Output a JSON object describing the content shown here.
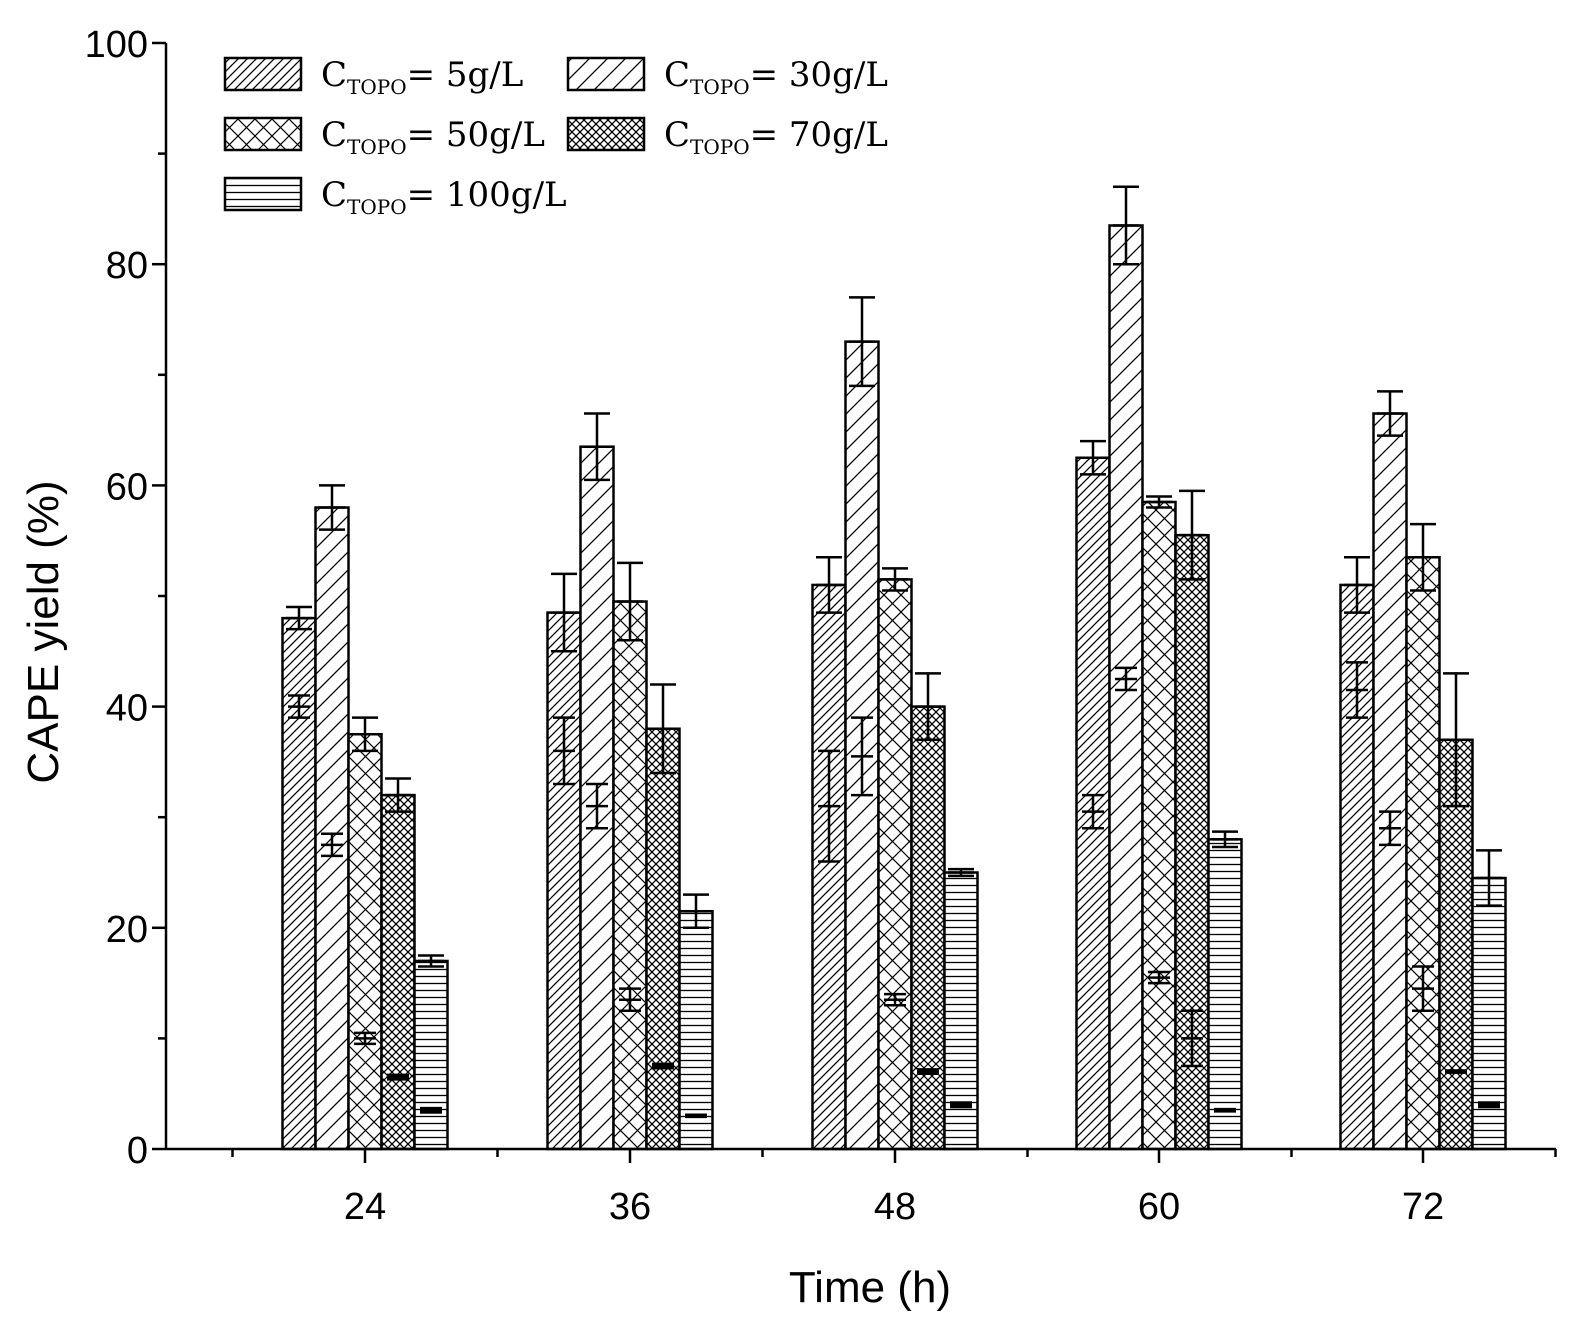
{
  "chart_data": {
    "type": "bar",
    "title": "",
    "xlabel": "Time (h)",
    "ylabel": "CAPE yield (%)",
    "ylim": [
      0,
      100
    ],
    "yticks": [
      "0",
      "20",
      "40",
      "60",
      "80",
      "100"
    ],
    "categories": [
      "24",
      "36",
      "48",
      "60",
      "72"
    ],
    "legend_position": "top-left",
    "series": [
      {
        "name": "C_TOPO = 5g/L",
        "label_main": "C",
        "label_sub": "TOPO",
        "label_rest": "= 5g/L",
        "pattern": "diag-dense",
        "values": [
          48,
          48.5,
          51,
          62.5,
          51
        ],
        "errors": [
          1,
          3.5,
          2.5,
          1.5,
          2.5
        ],
        "inner_marks": [
          40,
          36,
          31,
          30.5,
          41.5
        ],
        "inner_errors": [
          1,
          3,
          5,
          1.5,
          2.5
        ]
      },
      {
        "name": "C_TOPO = 30g/L",
        "label_main": "C",
        "label_sub": "TOPO",
        "label_rest": "= 30g/L",
        "pattern": "diag-sparse",
        "values": [
          58,
          63.5,
          73,
          83.5,
          66.5
        ],
        "errors": [
          2,
          3,
          4,
          3.5,
          2
        ],
        "inner_marks": [
          27.5,
          31,
          35.5,
          42.5,
          29
        ],
        "inner_errors": [
          1,
          2,
          3.5,
          1,
          1.5
        ]
      },
      {
        "name": "C_TOPO = 50g/L",
        "label_main": "C",
        "label_sub": "TOPO",
        "label_rest": "= 50g/L",
        "pattern": "cross",
        "values": [
          37.5,
          49.5,
          51.5,
          58.5,
          53.5
        ],
        "errors": [
          1.5,
          3.5,
          1,
          0.5,
          3
        ],
        "inner_marks": [
          10,
          13.5,
          13.5,
          15.5,
          14.5
        ],
        "inner_errors": [
          0.5,
          1,
          0.5,
          0.5,
          2
        ]
      },
      {
        "name": "C_TOPO = 70g/L",
        "label_main": "C",
        "label_sub": "TOPO",
        "label_rest": "= 70g/L",
        "pattern": "dense-cross",
        "values": [
          32,
          38,
          40,
          55.5,
          37
        ],
        "errors": [
          1.5,
          4,
          3,
          4,
          6
        ],
        "inner_marks": [
          6.5,
          7.5,
          7,
          10,
          7
        ],
        "inner_errors": [
          0.2,
          0.2,
          0.2,
          2.5,
          0.1
        ]
      },
      {
        "name": "C_TOPO = 100g/L",
        "label_main": "C",
        "label_sub": "TOPO",
        "label_rest": "= 100g/L",
        "pattern": "horizontal",
        "values": [
          17,
          21.5,
          25,
          28,
          24.5
        ],
        "errors": [
          0.5,
          1.5,
          0.3,
          0.7,
          2.5
        ],
        "inner_marks": [
          3.5,
          3,
          4,
          3.5,
          4
        ],
        "inner_errors": [
          0.2,
          0.1,
          0.2,
          0.1,
          0.2
        ]
      }
    ]
  }
}
